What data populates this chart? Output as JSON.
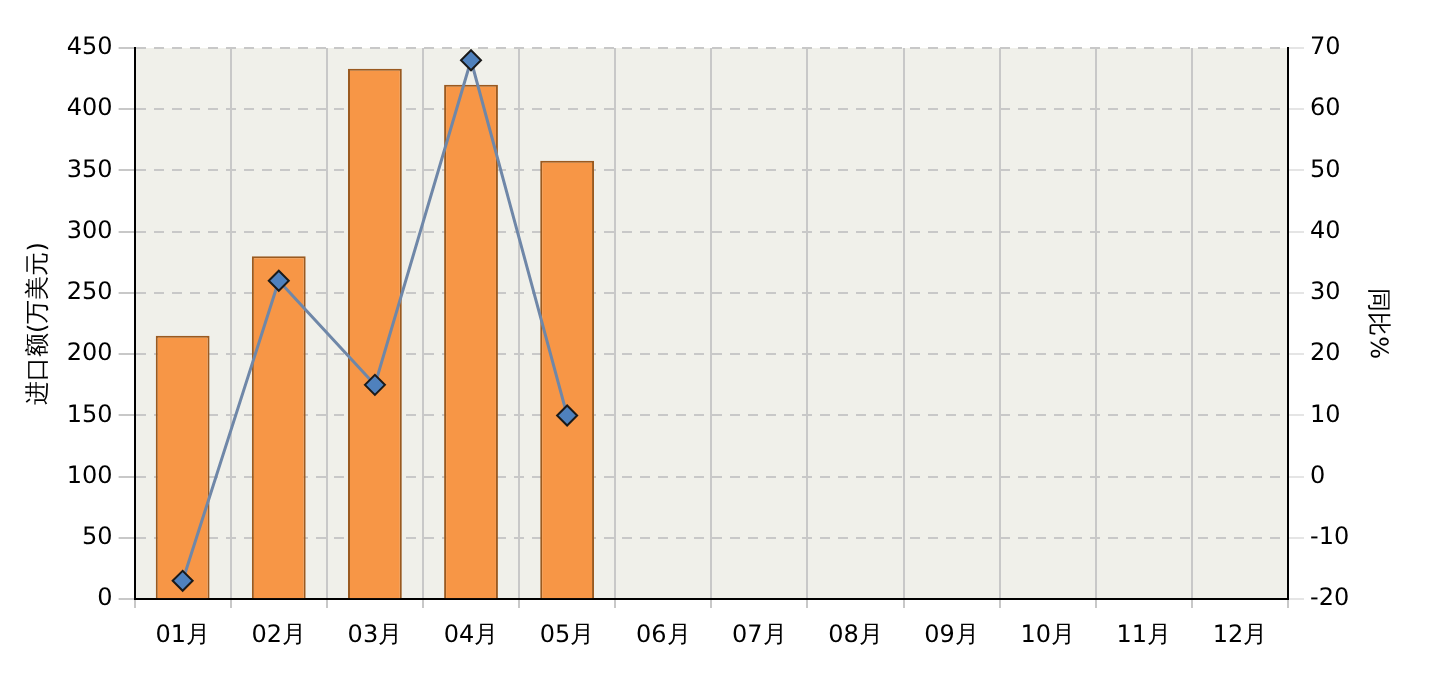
{
  "chart_data": {
    "type": "bar",
    "ylabel": "进口额(万美元)",
    "y2label": "同比%",
    "categories": [
      "01月",
      "02月",
      "03月",
      "04月",
      "05月",
      "06月",
      "07月",
      "08月",
      "09月",
      "10月",
      "11月",
      "12月"
    ],
    "series": [
      {
        "color": "#f79646",
        "values": [
          215,
          280,
          433,
          420,
          358,
          null,
          null,
          null,
          null,
          null,
          null,
          null
        ]
      },
      {
        "type": "line",
        "axis": "y2",
        "color": "#6f87a8",
        "marker": "diamond",
        "values": [
          -17,
          32,
          15,
          68,
          10,
          null,
          null,
          null,
          null,
          null,
          null,
          null
        ]
      }
    ],
    "ylim": [
      0,
      450
    ],
    "yticks": [
      0,
      50,
      100,
      150,
      200,
      250,
      300,
      350,
      400,
      450
    ],
    "y2lim": [
      -20,
      70
    ],
    "y2ticks": [
      -20,
      -10,
      0,
      10,
      20,
      30,
      40,
      50,
      60,
      70
    ],
    "grid": true,
    "legend": false
  }
}
